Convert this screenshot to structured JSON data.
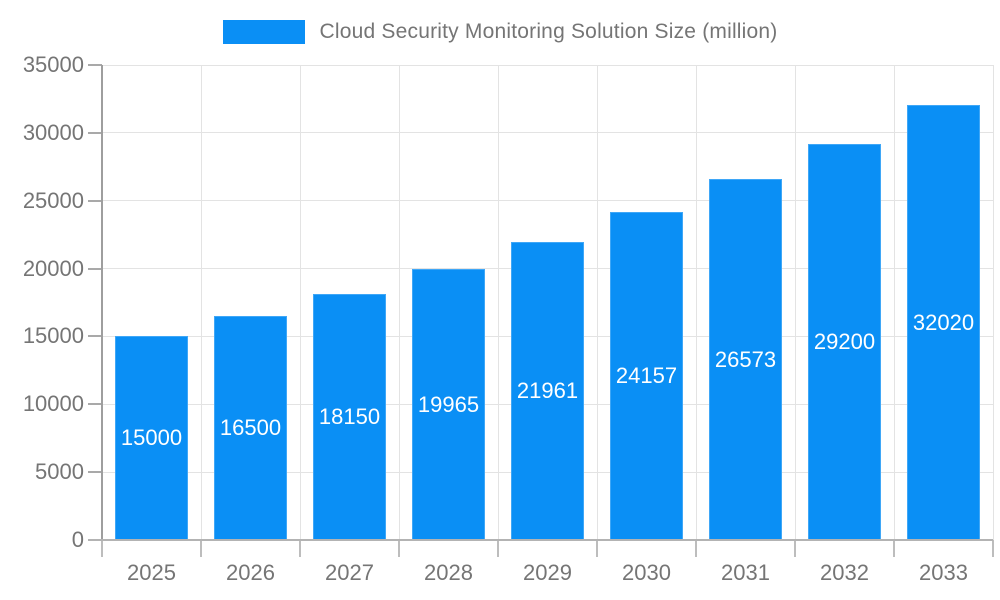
{
  "legend": {
    "label": "Cloud Security Monitoring Solution Size (million)",
    "swatch_color": "#0a8ff5"
  },
  "chart_data": {
    "type": "bar",
    "title": "Cloud Security Monitoring Solution Size (million)",
    "categories": [
      "2025",
      "2026",
      "2027",
      "2028",
      "2029",
      "2030",
      "2031",
      "2032",
      "2033"
    ],
    "values": [
      15000,
      16500,
      18150,
      19965,
      21961,
      24157,
      26573,
      29200,
      32020
    ],
    "value_labels": [
      "15000",
      "16500",
      "18150",
      "19965",
      "21961",
      "24157",
      "26573",
      "29200",
      "32020"
    ],
    "xlabel": "",
    "ylabel": "",
    "ylim": [
      0,
      35000
    ],
    "yticks": [
      0,
      5000,
      10000,
      15000,
      20000,
      25000,
      30000,
      35000
    ],
    "grid": true,
    "legend_position": "top-center",
    "colors": {
      "bar": "#0a8ff5",
      "value_label_text": "#ffffff",
      "axis_text": "#757575",
      "gridline": "#e3e3e3",
      "y_axis_line": "#9e9e9e",
      "x_axis_line": "#b3b3b3"
    }
  }
}
